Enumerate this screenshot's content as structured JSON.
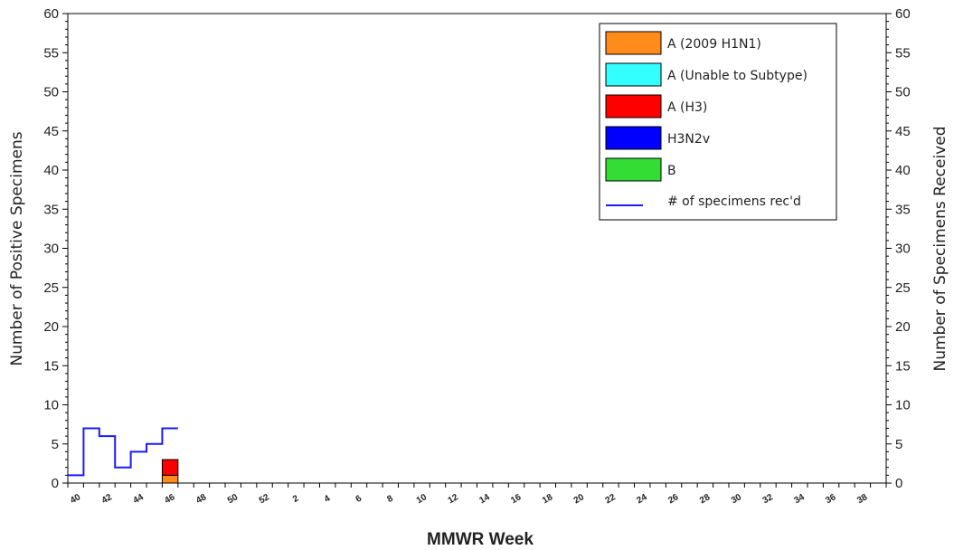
{
  "chart_data": {
    "type": "bar",
    "xlabel": "MMWR Week",
    "ylabel": "Number of Positive Specimens",
    "y2label": "Number of Specimens Received",
    "ylim": [
      0,
      60
    ],
    "y2lim": [
      0,
      60
    ],
    "yticks": [
      "0",
      "5",
      "10",
      "15",
      "20",
      "25",
      "30",
      "35",
      "40",
      "45",
      "50",
      "55",
      "60"
    ],
    "weeks": [
      "40",
      "41",
      "42",
      "43",
      "44",
      "45",
      "46",
      "47",
      "48",
      "49",
      "50",
      "51",
      "52",
      "1",
      "2",
      "3",
      "4",
      "5",
      "6",
      "7",
      "8",
      "9",
      "10",
      "11",
      "12",
      "13",
      "14",
      "15",
      "16",
      "17",
      "18",
      "19",
      "20",
      "21",
      "22",
      "23",
      "24",
      "25",
      "26",
      "27",
      "28",
      "29",
      "30",
      "31",
      "32",
      "33",
      "34",
      "35",
      "36",
      "37",
      "38",
      "39"
    ],
    "xtick_labels": [
      "40",
      "42",
      "44",
      "46",
      "48",
      "50",
      "52",
      "2",
      "4",
      "6",
      "8",
      "10",
      "12",
      "14",
      "16",
      "18",
      "20",
      "22",
      "24",
      "26",
      "28",
      "30",
      "32",
      "34",
      "36",
      "38"
    ],
    "stacked": true,
    "series": [
      {
        "name": "A (2009 H1N1)",
        "color": "#ff8c1a",
        "values": {
          "46": 1
        }
      },
      {
        "name": "A (Unable to Subtype)",
        "color": "#33ffff",
        "values": {}
      },
      {
        "name": "A (H3)",
        "color": "#ff0000",
        "values": {
          "46": 2
        }
      },
      {
        "name": "H3N2v",
        "color": "#0000ff",
        "values": {}
      },
      {
        "name": "B",
        "color": "#33dd33",
        "values": {}
      }
    ],
    "line_series": {
      "name": "# of specimens rec'd",
      "color": "#1a1aff",
      "axis": "right",
      "values": {
        "40": 1,
        "41": 7,
        "42": 6,
        "43": 2,
        "44": 4,
        "45": 5,
        "46": 7
      }
    },
    "legend_placement": "top-right",
    "grid": false
  }
}
